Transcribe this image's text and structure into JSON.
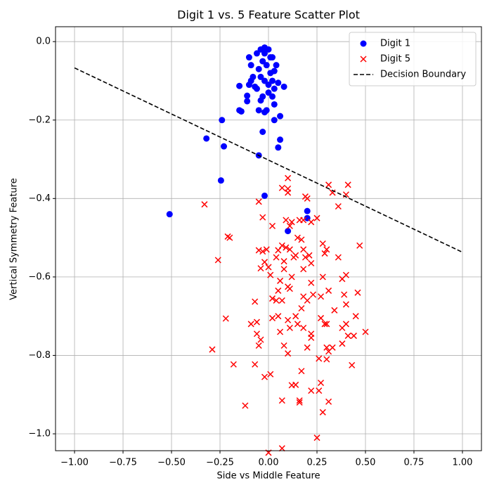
{
  "chart_data": {
    "type": "scatter",
    "title": "Digit 1 vs. 5 Feature Scatter Plot",
    "xlabel": "Side vs Middle Feature",
    "ylabel": "Vertical Symmetry Feature",
    "xlim": [
      -1.098,
      1.098
    ],
    "ylim": [
      -1.043,
      0.038
    ],
    "xticks": [
      {
        "value": -1,
        "label": "−1.00"
      },
      {
        "value": -0.75,
        "label": "−0.75"
      },
      {
        "value": -0.5,
        "label": "−0.50"
      },
      {
        "value": -0.25,
        "label": "−0.25"
      },
      {
        "value": 0,
        "label": "0.00"
      },
      {
        "value": 0.25,
        "label": "0.25"
      },
      {
        "value": 0.5,
        "label": "0.50"
      },
      {
        "value": 0.75,
        "label": "0.75"
      },
      {
        "value": 1,
        "label": "1.00"
      }
    ],
    "yticks": [
      {
        "value": 0,
        "label": "0.0"
      },
      {
        "value": -0.2,
        "label": "−0.2"
      },
      {
        "value": -0.4,
        "label": "−0.4"
      },
      {
        "value": -0.6,
        "label": "−0.6"
      },
      {
        "value": -0.8,
        "label": "−0.8"
      },
      {
        "value": -1,
        "label": "−1.0"
      }
    ],
    "grid": true,
    "legend": "upper right",
    "series": [
      {
        "name": "Digit 1",
        "color": "#0000ff",
        "marker": "circle",
        "x": [
          -0.51,
          -0.32,
          -0.24,
          -0.23,
          -0.245,
          -0.05,
          -0.02,
          0.2,
          0.2,
          0.1,
          0.06,
          0.05,
          -0.03,
          0.06,
          0.03,
          -0.15,
          -0.14,
          -0.11,
          -0.11,
          -0.15,
          -0.05,
          -0.02,
          -0.01,
          0.03,
          0.02,
          0.08,
          0.05,
          -0.04,
          -0.03,
          0,
          0.03,
          0.02,
          0.04,
          0.02,
          -0.1,
          -0.09,
          -0.08,
          -0.09,
          -0.1,
          -0.07,
          -0.06,
          -0.04,
          -0.02,
          0,
          -0.03,
          -0.01,
          -0.05,
          0.01,
          -0.02,
          -0.06,
          0,
          0.01,
          -0.04,
          -0.02,
          0.03
        ],
        "values": [
          -0.44,
          -0.247,
          -0.2,
          -0.267,
          -0.354,
          -0.29,
          -0.393,
          -0.432,
          -0.45,
          -0.483,
          -0.25,
          -0.27,
          -0.23,
          -0.19,
          -0.2,
          -0.175,
          -0.178,
          -0.152,
          -0.138,
          -0.113,
          -0.175,
          -0.18,
          -0.175,
          -0.16,
          -0.14,
          -0.115,
          -0.105,
          -0.15,
          -0.14,
          -0.13,
          -0.12,
          -0.1,
          -0.06,
          -0.04,
          -0.04,
          -0.06,
          -0.09,
          -0.1,
          -0.11,
          -0.115,
          -0.03,
          -0.02,
          -0.015,
          -0.02,
          -0.05,
          -0.06,
          -0.07,
          -0.08,
          -0.1,
          -0.12,
          -0.11,
          -0.04,
          -0.09,
          -0.03,
          -0.075
        ]
      },
      {
        "name": "Digit 5",
        "color": "#ff0000",
        "marker": "x",
        "x": [
          -0.33,
          -0.21,
          -0.2,
          -0.26,
          -0.22,
          -0.29,
          -0.18,
          -0.12,
          -0.07,
          -0.05,
          -0.03,
          0.05,
          -0.03,
          -0.05,
          -0.01,
          -0.02,
          -0.04,
          0,
          0.01,
          0.04,
          0.02,
          0.07,
          0.1,
          0.1,
          0.1,
          0.09,
          0.11,
          0.12,
          0.07,
          0.09,
          0.11,
          0.13,
          0.08,
          0.06,
          0.08,
          0.1,
          0.11,
          0.05,
          0.07,
          0.02,
          0.04,
          -0.07,
          -0.06,
          -0.09,
          -0.06,
          -0.05,
          -0.04,
          0.02,
          0.05,
          0.1,
          0.11,
          0.06,
          0.08,
          0.1,
          -0.02,
          0.01,
          0.12,
          0.14,
          0.07,
          0.16,
          0.16,
          0.22,
          0.26,
          0.27,
          0.28,
          0.31,
          0.25,
          0.07,
          0,
          0.17,
          0.26,
          0.3,
          0.3,
          0.31,
          0.33,
          0.38,
          0.43,
          0.2,
          0.18,
          0.22,
          0.22,
          0.27,
          0.29,
          0.3,
          0.38,
          0.4,
          0.41,
          0.44,
          0.45,
          0.5,
          0.46,
          0.4,
          0.39,
          0.4,
          0.38,
          0.34,
          0.31,
          0.28,
          0.27,
          0.23,
          0.22,
          0.2,
          0.18,
          0.17,
          0.14,
          0.15,
          0.12,
          0.15,
          0.17,
          0.18,
          0.19,
          0.21,
          0.22,
          0.18,
          0.14,
          0.16,
          0.18,
          0.19,
          0.2,
          0.22,
          0.25,
          0.28,
          0.29,
          0.3,
          0.33,
          0.31,
          0.36,
          0.4,
          0.41,
          0.47,
          0.36
        ],
        "values": [
          -0.415,
          -0.497,
          -0.5,
          -0.557,
          -0.706,
          -0.785,
          -0.823,
          -0.928,
          -0.823,
          -0.408,
          -0.448,
          -0.532,
          -0.535,
          -0.532,
          -0.53,
          -0.562,
          -0.578,
          -0.575,
          -0.595,
          -0.55,
          -0.47,
          -0.373,
          -0.348,
          -0.375,
          -0.385,
          -0.455,
          -0.47,
          -0.46,
          -0.52,
          -0.525,
          -0.53,
          -0.55,
          -0.56,
          -0.61,
          -0.58,
          -0.625,
          -0.63,
          -0.635,
          -0.66,
          -0.655,
          -0.66,
          -0.663,
          -0.715,
          -0.72,
          -0.745,
          -0.775,
          -0.76,
          -0.705,
          -0.7,
          -0.71,
          -0.73,
          -0.74,
          -0.775,
          -0.795,
          -0.855,
          -0.848,
          -0.876,
          -0.875,
          -0.915,
          -0.915,
          -0.92,
          -0.89,
          -0.89,
          -0.87,
          -0.945,
          -0.918,
          -1.01,
          -1.037,
          -1.048,
          -0.84,
          -0.808,
          -0.81,
          -0.78,
          -0.79,
          -0.78,
          -0.77,
          -0.825,
          -0.78,
          -0.73,
          -0.745,
          -0.755,
          -0.705,
          -0.72,
          -0.72,
          -0.73,
          -0.72,
          -0.75,
          -0.75,
          -0.7,
          -0.74,
          -0.64,
          -0.67,
          -0.645,
          -0.595,
          -0.605,
          -0.685,
          -0.635,
          -0.6,
          -0.65,
          -0.645,
          -0.615,
          -0.66,
          -0.65,
          -0.68,
          -0.7,
          -0.72,
          -0.6,
          -0.5,
          -0.505,
          -0.53,
          -0.55,
          -0.545,
          -0.565,
          -0.58,
          -0.545,
          -0.455,
          -0.455,
          -0.395,
          -0.4,
          -0.46,
          -0.45,
          -0.515,
          -0.54,
          -0.53,
          -0.385,
          -0.365,
          -0.42,
          -0.39,
          -0.365,
          -0.52,
          -0.55
        ]
      },
      {
        "name": "Decision Boundary",
        "color": "#000000",
        "marker": "dashed-line",
        "x": [
          -1,
          1
        ],
        "values": [
          -0.067,
          -0.537
        ]
      }
    ]
  }
}
